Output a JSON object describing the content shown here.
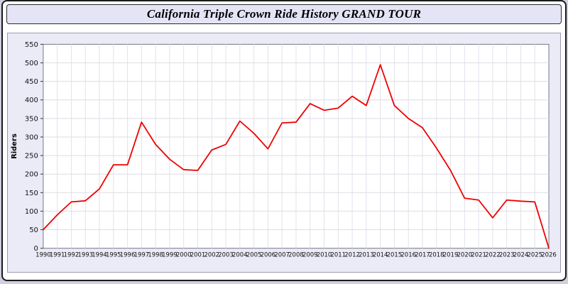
{
  "header": {
    "title": "California Triple Crown Ride History GRAND TOUR"
  },
  "chart_data": {
    "type": "line",
    "title": "California Triple Crown Ride History GRAND TOUR",
    "xlabel": "",
    "ylabel": "Riders",
    "ylim": [
      0,
      550
    ],
    "ytick_step": 50,
    "grid": true,
    "legend_position": "none",
    "line_color": "#ee0000",
    "x": [
      1990,
      1991,
      1992,
      1993,
      1994,
      1995,
      1996,
      1997,
      1998,
      1999,
      2000,
      2001,
      2002,
      2003,
      2004,
      2005,
      2006,
      2007,
      2008,
      2009,
      2010,
      2011,
      2012,
      2013,
      2014,
      2015,
      2016,
      2017,
      2018,
      2019,
      2020,
      2021,
      2022,
      2023,
      2024,
      2025,
      2026
    ],
    "series": [
      {
        "name": "Riders",
        "color": "#ee0000",
        "values": [
          50,
          90,
          125,
          128,
          160,
          225,
          225,
          340,
          280,
          240,
          212,
          210,
          265,
          280,
          343,
          310,
          268,
          338,
          340,
          390,
          372,
          378,
          410,
          385,
          495,
          385,
          350,
          325,
          270,
          210,
          135,
          130,
          82,
          130,
          127,
          125,
          0
        ]
      }
    ]
  }
}
